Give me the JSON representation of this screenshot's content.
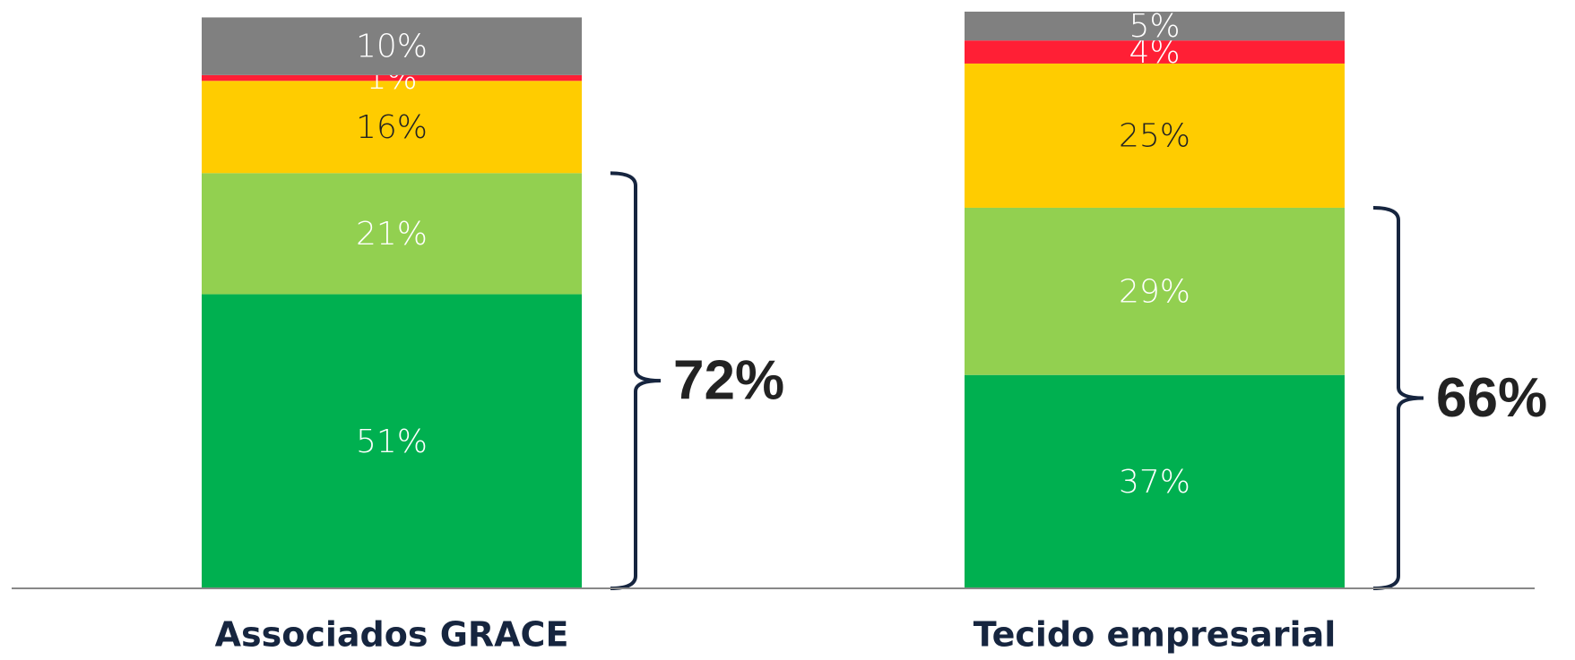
{
  "chart_data": {
    "type": "stacked_bar",
    "categories": [
      "Associados GRACE",
      "Tecido empresarial"
    ],
    "series": [
      {
        "color": "#00b050",
        "label_color": "#ffffff",
        "values": [
          51,
          37
        ],
        "value_labels": [
          "51%",
          "37%"
        ]
      },
      {
        "color": "#92d050",
        "label_color": "#ffffff",
        "values": [
          21,
          29
        ],
        "value_labels": [
          "21%",
          "29%"
        ]
      },
      {
        "color": "#ffcc00",
        "label_color": "#222222",
        "values": [
          16,
          25
        ],
        "value_labels": [
          "16%",
          "25%"
        ]
      },
      {
        "color": "#ff1f35",
        "label_color": "#ffffff",
        "values": [
          1,
          4
        ],
        "value_labels": [
          "1%",
          "4%"
        ]
      },
      {
        "color": "#808080",
        "label_color": "#ffffff",
        "values": [
          10,
          5
        ],
        "value_labels": [
          "10%",
          "5%"
        ]
      }
    ],
    "ylim": [
      0,
      100
    ],
    "annotations": [
      "72%",
      "66%"
    ]
  }
}
